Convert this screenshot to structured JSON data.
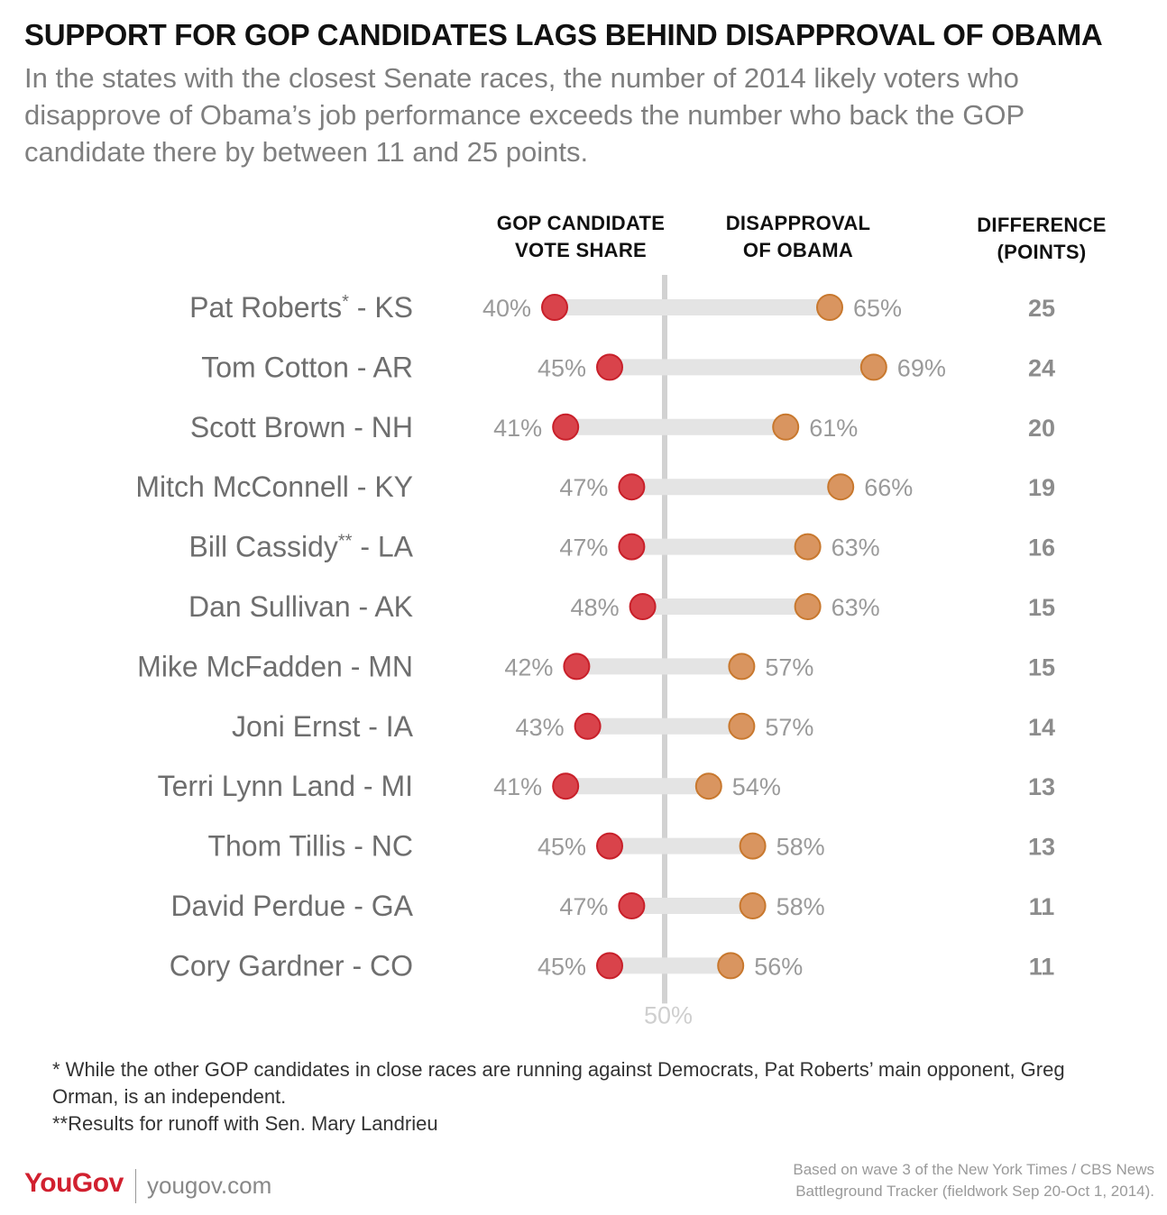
{
  "title": "SUPPORT FOR GOP CANDIDATES LAGS BEHIND DISAPPROVAL OF OBAMA",
  "subtitle": "In the states with the closest Senate races, the number of 2014 likely voters who disapprove of Obama’s job performance exceeds the number who back the GOP candidate there by between 11 and 25 points.",
  "column_headers": {
    "gop_line1": "GOP CANDIDATE",
    "gop_line2": "VOTE SHARE",
    "dis_line1": "DISAPPROVAL",
    "dis_line2": "OF OBAMA",
    "diff_line1": "DIFFERENCE",
    "diff_line2": "(POINTS)"
  },
  "colors": {
    "gop": "#d9434b",
    "gop_stroke": "#c8202a",
    "disapproval": "#d99560",
    "disapproval_stroke": "#c8782e",
    "connector": "#e4e4e4",
    "midline": "#d2d2d2",
    "label": "#6e6e6e",
    "value": "#9a9a9a"
  },
  "chart_data": {
    "type": "dumbbell",
    "reference_line": {
      "value": 50,
      "label": "50%"
    },
    "series": [
      {
        "name": "GOP CANDIDATE VOTE SHARE",
        "values": [
          40,
          45,
          41,
          47,
          47,
          48,
          42,
          43,
          41,
          45,
          47,
          45
        ]
      },
      {
        "name": "DISAPPROVAL OF OBAMA",
        "values": [
          65,
          69,
          61,
          66,
          63,
          63,
          57,
          57,
          54,
          58,
          58,
          56
        ]
      }
    ],
    "rows": [
      {
        "candidate": "Pat Roberts",
        "mark": "*",
        "state": " - KS",
        "gop": 40,
        "disapproval": 65,
        "difference": 25
      },
      {
        "candidate": "Tom Cotton",
        "mark": "",
        "state": " - AR",
        "gop": 45,
        "disapproval": 69,
        "difference": 24
      },
      {
        "candidate": "Scott Brown",
        "mark": "",
        "state": " - NH",
        "gop": 41,
        "disapproval": 61,
        "difference": 20
      },
      {
        "candidate": "Mitch McConnell",
        "mark": "",
        "state": " - KY",
        "gop": 47,
        "disapproval": 66,
        "difference": 19
      },
      {
        "candidate": "Bill Cassidy",
        "mark": "**",
        "state": " - LA",
        "gop": 47,
        "disapproval": 63,
        "difference": 16
      },
      {
        "candidate": "Dan Sullivan",
        "mark": "",
        "state": " - AK",
        "gop": 48,
        "disapproval": 63,
        "difference": 15
      },
      {
        "candidate": "Mike McFadden",
        "mark": "",
        "state": " - MN",
        "gop": 42,
        "disapproval": 57,
        "difference": 15
      },
      {
        "candidate": "Joni Ernst",
        "mark": "",
        "state": " - IA",
        "gop": 43,
        "disapproval": 57,
        "difference": 14
      },
      {
        "candidate": "Terri Lynn Land",
        "mark": "",
        "state": " - MI",
        "gop": 41,
        "disapproval": 54,
        "difference": 13
      },
      {
        "candidate": "Thom Tillis",
        "mark": "",
        "state": " - NC",
        "gop": 45,
        "disapproval": 58,
        "difference": 13
      },
      {
        "candidate": "David Perdue",
        "mark": "",
        "state": " - GA",
        "gop": 47,
        "disapproval": 58,
        "difference": 11
      },
      {
        "candidate": "Cory Gardner",
        "mark": "",
        "state": " - CO",
        "gop": 45,
        "disapproval": 56,
        "difference": 11
      }
    ]
  },
  "footnotes": {
    "note1": "* While the other GOP candidates in close races are running against Democrats, Pat Roberts’ main opponent, Greg Orman,  is an independent.",
    "note2": "**Results for runoff with Sen. Mary Landrieu"
  },
  "footer": {
    "logo": "YouGov",
    "site": "yougov.com",
    "source_line1": "Based on wave 3 of the New York Times / CBS News",
    "source_line2": "Battleground Tracker (fieldwork Sep 20-Oct 1, 2014)."
  }
}
